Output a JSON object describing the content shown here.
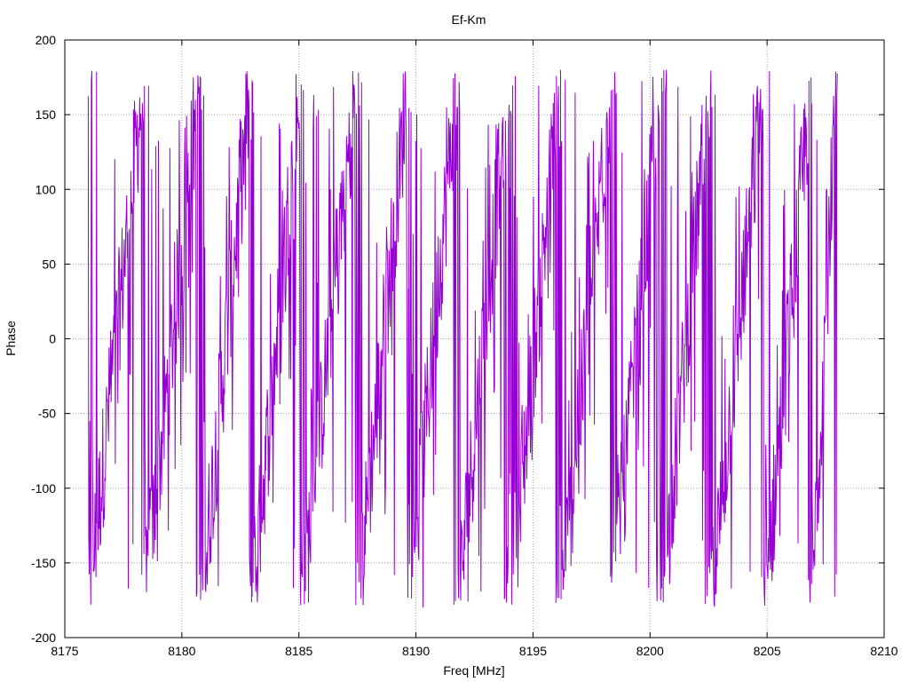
{
  "chart_data": {
    "type": "line",
    "title": "Ef-Km",
    "xlabel": "Freq [MHz]",
    "ylabel": "Phase",
    "xlim": [
      8175,
      8210
    ],
    "ylim": [
      -200,
      200
    ],
    "xticks": [
      8175,
      8180,
      8185,
      8190,
      8195,
      8200,
      8205,
      8210
    ],
    "yticks": [
      -200,
      -150,
      -100,
      -50,
      0,
      50,
      100,
      150,
      200
    ],
    "x_data_range": [
      8176,
      8208
    ],
    "grid": true,
    "series": [
      {
        "color": "#9400d3",
        "wraps": [
          {
            "x_start": 8176.0,
            "x_end": 8178.4
          },
          {
            "x_start": 8178.4,
            "x_end": 8180.8
          },
          {
            "x_start": 8180.8,
            "x_end": 8183.0
          },
          {
            "x_start": 8183.0,
            "x_end": 8185.1
          },
          {
            "x_start": 8185.1,
            "x_end": 8187.5
          },
          {
            "x_start": 8187.5,
            "x_end": 8189.7
          },
          {
            "x_start": 8189.7,
            "x_end": 8191.8
          },
          {
            "x_start": 8191.8,
            "x_end": 8194.0
          },
          {
            "x_start": 8194.0,
            "x_end": 8196.2
          },
          {
            "x_start": 8196.2,
            "x_end": 8198.4
          },
          {
            "x_start": 8198.4,
            "x_end": 8200.5
          },
          {
            "x_start": 8200.5,
            "x_end": 8202.6
          },
          {
            "x_start": 8202.6,
            "x_end": 8204.9
          },
          {
            "x_start": 8204.9,
            "x_end": 8206.9
          },
          {
            "x_start": 8206.9,
            "x_end": 8208.0
          }
        ],
        "y_min": -180,
        "y_max": 180
      }
    ]
  }
}
